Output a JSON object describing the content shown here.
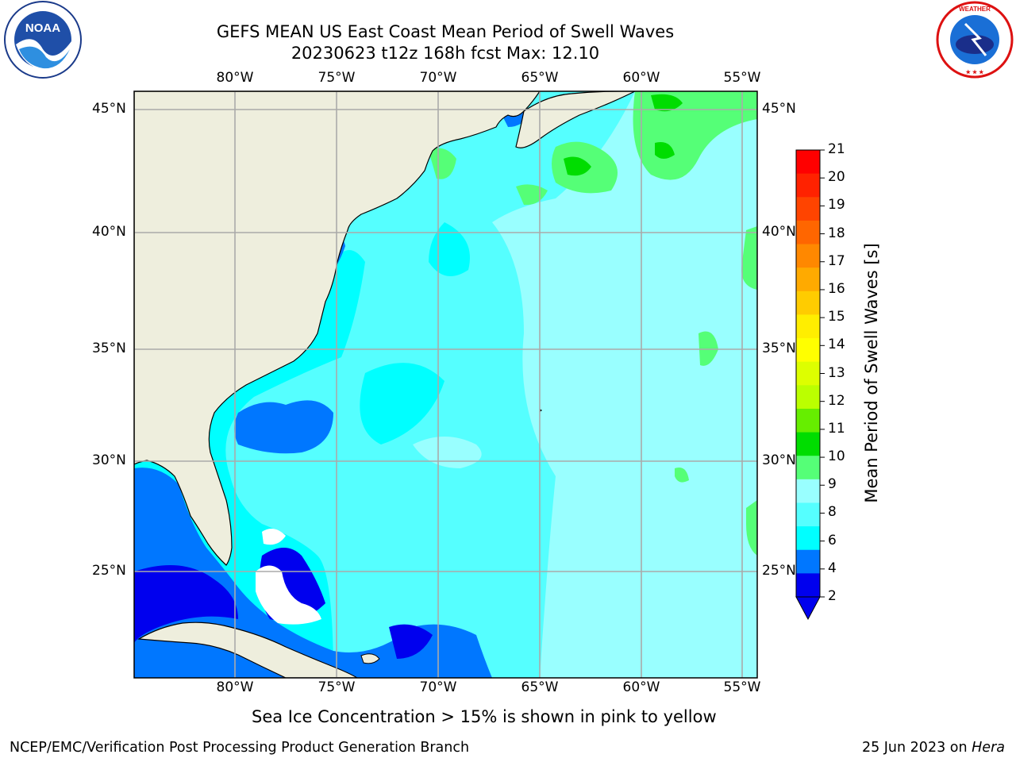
{
  "title": {
    "line1": "GEFS MEAN US East Coast Mean Period of Swell Waves",
    "line2": "20230623 t12z 168h fcst   Max: 12.10"
  },
  "map": {
    "region": "US East Coast",
    "lon_range": [
      -85,
      -54.5
    ],
    "lat_range": [
      20.5,
      46
    ],
    "lon_ticks": [
      "80°W",
      "75°W",
      "70°W",
      "65°W",
      "60°W",
      "55°W"
    ],
    "lat_ticks": [
      "45°N",
      "40°N",
      "35°N",
      "30°N",
      "25°N"
    ],
    "land_color": "#eeeedd",
    "grid_color": "#aaaaaa"
  },
  "colorbar": {
    "label": "Mean Period of Swell Waves [s]",
    "ticks": [
      "21",
      "20",
      "19",
      "18",
      "17",
      "16",
      "15",
      "14",
      "13",
      "12",
      "11",
      "10",
      "9",
      "8",
      "6",
      "4",
      "2"
    ],
    "colors": [
      "#ff0000",
      "#ff2200",
      "#ff4400",
      "#ff6600",
      "#ff8800",
      "#ffaa00",
      "#ffcc00",
      "#ffee00",
      "#ffff00",
      "#ddff00",
      "#bbff00",
      "#66ee00",
      "#00dd00",
      "#55ff77",
      "#99ffff",
      "#55ffff",
      "#00ffff",
      "#0077ff",
      "#0000ee"
    ],
    "under_color": "#0000ee"
  },
  "note": "Sea Ice Concentration > 15% is shown in pink to yellow",
  "footer": {
    "left": "NCEP/EMC/Verification Post Processing Product Generation Branch",
    "date": "25 Jun 2023 on ",
    "machine": "Hera"
  },
  "logos": {
    "left": "NOAA",
    "right": "NATIONAL WEATHER SERVICE"
  }
}
